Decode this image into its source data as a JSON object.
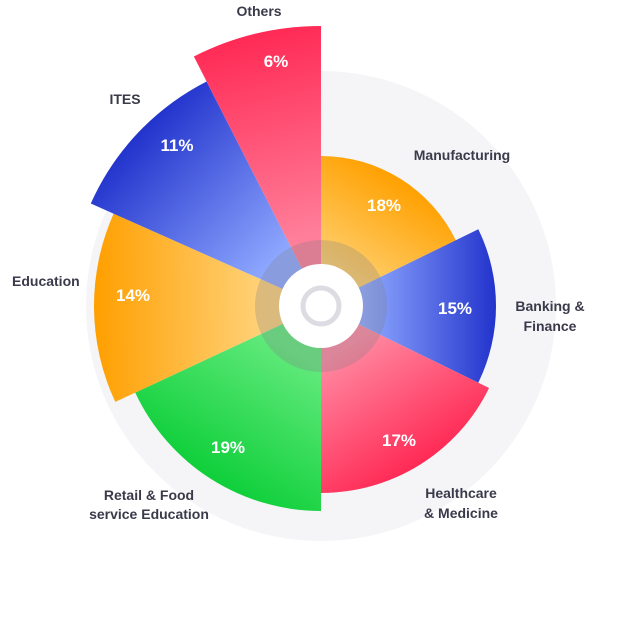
{
  "chart_data": {
    "type": "pie",
    "variant": "polar-area",
    "slices": [
      {
        "label_lines": [
          "Manufacturing"
        ],
        "value": 18,
        "display": "18%",
        "color_dark": "#ffa000",
        "color_light": "#ffd070"
      },
      {
        "label_lines": [
          "Banking &",
          "Finance"
        ],
        "value": 15,
        "display": "15%",
        "color_dark": "#2233cc",
        "color_light": "#8ea8ff"
      },
      {
        "label_lines": [
          "Healthcare",
          "& Medicine"
        ],
        "value": 17,
        "display": "17%",
        "color_dark": "#ff2a55",
        "color_light": "#ff8aa2"
      },
      {
        "label_lines": [
          "Retail & Food",
          "service Education"
        ],
        "value": 19,
        "display": "19%",
        "color_dark": "#0fcf3a",
        "color_light": "#63ea7d"
      },
      {
        "label_lines": [
          "Education"
        ],
        "value": 14,
        "display": "14%",
        "color_dark": "#ff9f00",
        "color_light": "#ffd27a"
      },
      {
        "label_lines": [
          "ITES"
        ],
        "value": 11,
        "display": "11%",
        "color_dark": "#2233cc",
        "color_light": "#8ea8ff"
      },
      {
        "label_lines": [
          "Others"
        ],
        "value": 6,
        "display": "6%",
        "color_dark": "#ff2a55",
        "color_light": "#ff7f9a"
      }
    ]
  }
}
